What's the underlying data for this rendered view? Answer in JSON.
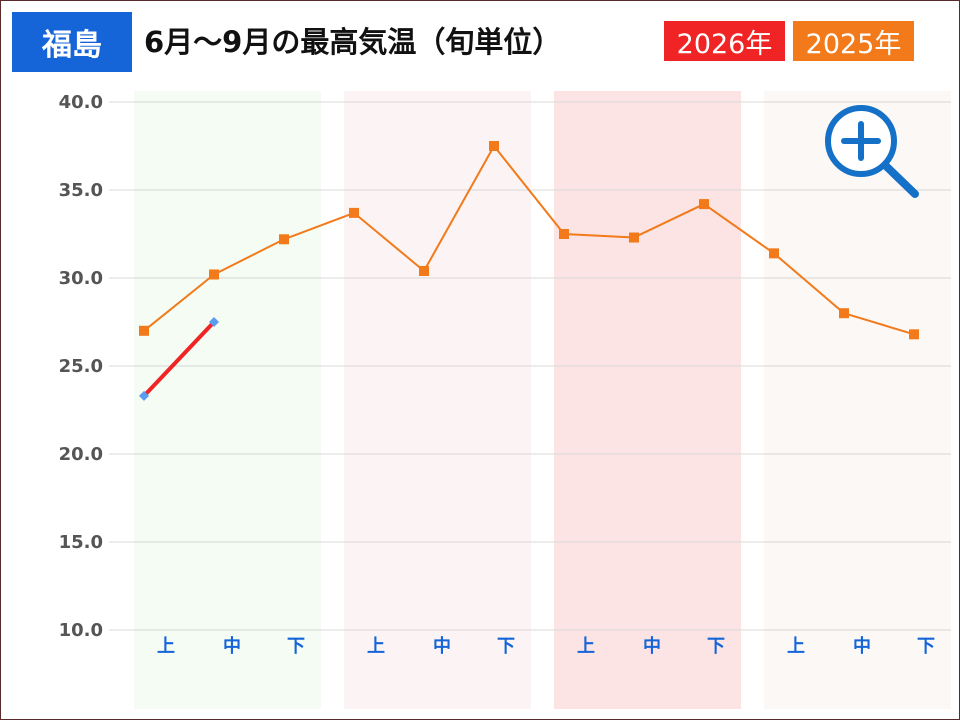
{
  "header": {
    "city": "福島",
    "title": "6月～9月の最高気温（旬単位）"
  },
  "colors": {
    "city_badge": "#1565d8",
    "series_2026": "#f02424",
    "series_2026_marker": "#5b9bf0",
    "series_2025": "#f27a1a",
    "band_june": "#f4fcf4",
    "band_july": "#fcf4f4",
    "band_august": "#fce4e4",
    "band_september": "#fcf8f6",
    "category_label": "#1565d8",
    "zoom_icon": "#1570c8"
  },
  "icons": {
    "zoom": "zoom-in-icon"
  },
  "chart_data": {
    "type": "line",
    "categories": [
      "上",
      "中",
      "下",
      "上",
      "中",
      "下",
      "上",
      "中",
      "下",
      "上",
      "中",
      "下"
    ],
    "ylim": [
      10,
      40
    ],
    "yticks": [
      "10.0",
      "15.0",
      "20.0",
      "25.0",
      "30.0",
      "35.0",
      "40.0"
    ],
    "grid": true,
    "series": [
      {
        "name": "2026年",
        "values": [
          23.3,
          27.5,
          null,
          null,
          null,
          null,
          null,
          null,
          null,
          null,
          null,
          null
        ]
      },
      {
        "name": "2025年",
        "values": [
          27.0,
          30.2,
          32.2,
          33.7,
          30.4,
          37.5,
          32.5,
          32.3,
          34.2,
          31.4,
          28.0,
          26.8
        ]
      }
    ]
  }
}
